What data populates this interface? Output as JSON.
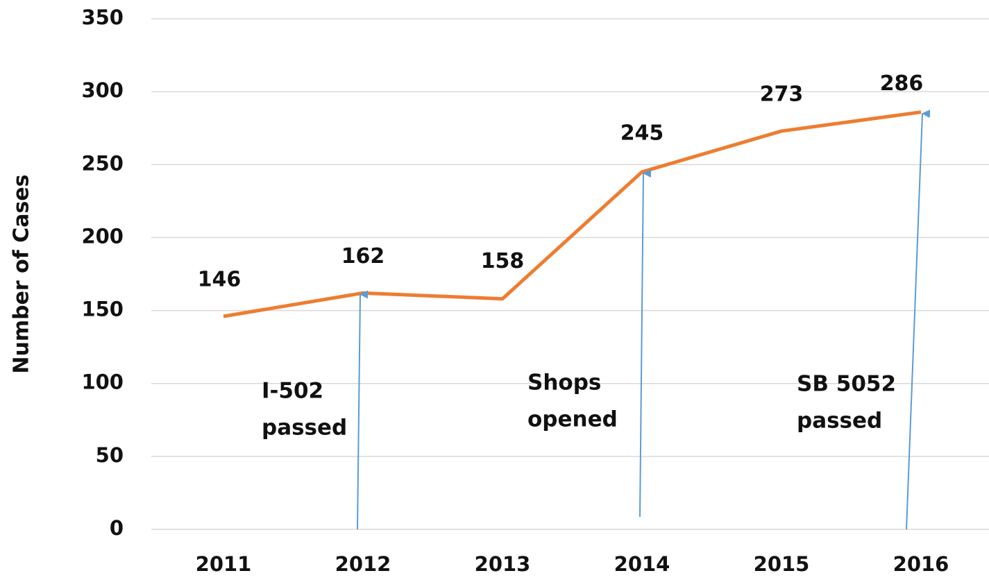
{
  "chart_data": {
    "type": "line",
    "y_label": "Number of Cases",
    "categories": [
      "2011",
      "2012",
      "2013",
      "2014",
      "2015",
      "2016"
    ],
    "series": [
      {
        "name": "Cases",
        "color": "#ed7d31",
        "values": [
          146,
          162,
          158,
          245,
          273,
          286
        ]
      }
    ],
    "ylim": [
      0,
      350
    ],
    "yticks": [
      0,
      50,
      100,
      150,
      200,
      250,
      300,
      350
    ],
    "grid": true,
    "annotations": [
      [
        "I-502",
        "passed"
      ],
      [
        "Shops",
        "opened"
      ],
      [
        "SB 5052",
        "passed"
      ]
    ],
    "annotation_color": "#5b9bd5"
  }
}
